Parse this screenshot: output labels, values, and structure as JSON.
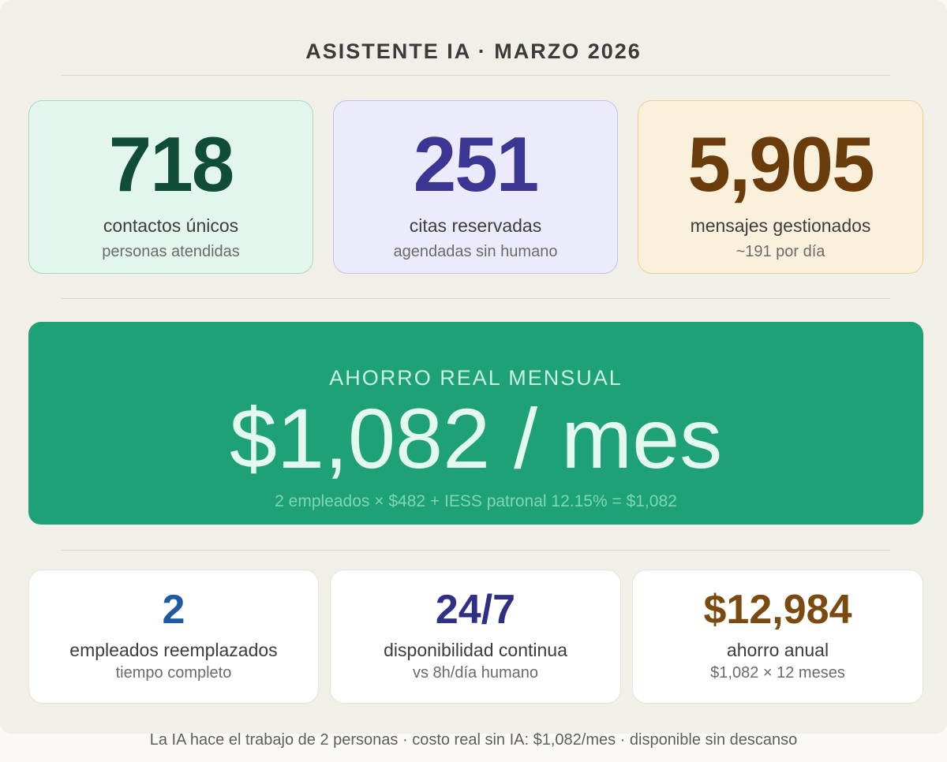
{
  "header": {
    "title": "ASISTENTE IA · MARZO 2026"
  },
  "top_cards": [
    {
      "value": "718",
      "label": "contactos únicos",
      "sub": "personas atendidas"
    },
    {
      "value": "251",
      "label": "citas reservadas",
      "sub": "agendadas sin humano"
    },
    {
      "value": "5,905",
      "label": "mensajes gestionados",
      "sub": "~191 por día"
    }
  ],
  "hero": {
    "eyebrow": "AHORRO REAL MENSUAL",
    "value": "$1,082 / mes",
    "formula": "2 empleados × $482 + IESS patronal 12.15% = $1,082"
  },
  "bottom_cards": [
    {
      "value": "2",
      "label": "empleados reemplazados",
      "sub": "tiempo completo"
    },
    {
      "value": "24/7",
      "label": "disponibilidad continua",
      "sub": "vs 8h/día humano"
    },
    {
      "value": "$12,984",
      "label": "ahorro anual",
      "sub": "$1,082 × 12 meses"
    }
  ],
  "footer": {
    "text": "La IA hace el trabajo de 2 personas · costo real sin IA: $1,082/mes · disponible sin descanso"
  },
  "colors": {
    "green_card_bg": "#e3f6ee",
    "green_card_border": "#9fdcc2",
    "green_value": "#0f4d38",
    "purple_card_bg": "#ecebfb",
    "purple_card_border": "#c5c1ee",
    "purple_value": "#3b3594",
    "amber_card_bg": "#fbf0dc",
    "amber_card_border": "#efcf93",
    "amber_value": "#6a3c0c",
    "hero_bg": "#1ea176",
    "blue_value": "#1f5aa3",
    "navy_value": "#2f2f86",
    "brown_value": "#7a4a10"
  }
}
